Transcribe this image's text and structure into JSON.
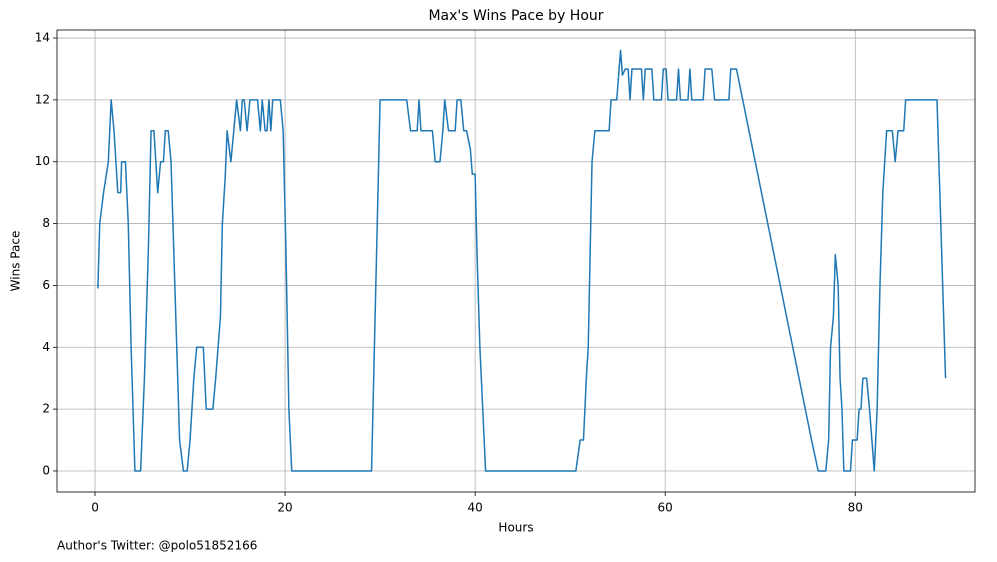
{
  "chart_data": {
    "type": "line",
    "title": "Max's Wins Pace by Hour",
    "x_label": "Hours",
    "y_label": "Wins Pace",
    "footnote": "Author's Twitter: @polo51852166",
    "x": [
      0.3,
      0.5,
      0.9,
      1.4,
      1.7,
      2.0,
      2.4,
      2.7,
      2.8,
      3.2,
      3.5,
      3.8,
      4.0,
      4.2,
      4.8,
      5.2,
      5.6,
      5.9,
      6.2,
      6.4,
      6.6,
      6.9,
      7.2,
      7.4,
      7.7,
      8.0,
      8.3,
      8.6,
      8.9,
      9.3,
      9.7,
      10.0,
      10.4,
      10.7,
      11.4,
      11.7,
      12.4,
      12.7,
      13.2,
      13.4,
      13.7,
      13.9,
      14.3,
      14.6,
      14.9,
      15.3,
      15.5,
      15.7,
      16.0,
      16.3,
      17.1,
      17.4,
      17.6,
      17.9,
      18.1,
      18.3,
      18.5,
      18.7,
      19.5,
      19.8,
      20.1,
      20.4,
      20.7,
      29.1,
      29.4,
      29.7,
      30.0,
      32.8,
      33.2,
      33.9,
      34.1,
      34.3,
      35.5,
      35.8,
      36.3,
      36.6,
      36.8,
      37.2,
      37.9,
      38.1,
      38.5,
      38.8,
      39.1,
      39.5,
      39.7,
      40.0,
      40.2,
      40.5,
      40.8,
      41.1,
      50.6,
      51.05,
      51.4,
      51.7,
      51.9,
      52.3,
      52.6,
      54.1,
      54.3,
      54.9,
      55.3,
      55.5,
      55.8,
      56.1,
      56.3,
      56.5,
      57.5,
      57.7,
      57.9,
      58.6,
      58.8,
      59.6,
      59.8,
      60.1,
      60.3,
      61.2,
      61.4,
      61.6,
      62.4,
      62.6,
      62.8,
      64.0,
      64.2,
      64.9,
      65.2,
      66.7,
      66.9,
      67.5,
      75.4,
      76.1,
      76.9,
      77.2,
      77.4,
      77.7,
      77.9,
      78.2,
      78.4,
      78.6,
      78.8,
      79.5,
      79.7,
      80.2,
      80.4,
      80.6,
      80.8,
      81.2,
      81.5,
      82.0,
      82.3,
      82.6,
      82.9,
      83.3,
      83.9,
      84.2,
      84.5,
      85.1,
      85.3,
      88.6,
      88.9,
      89.5
    ],
    "series": [
      {
        "name": "Wins Pace",
        "color": "#1f77b4",
        "values": [
          5.9,
          8,
          9,
          10,
          12,
          11,
          9,
          9,
          10,
          10,
          8,
          4,
          2,
          0,
          0,
          3,
          7,
          11,
          11,
          10,
          9,
          10,
          10,
          11,
          11,
          10,
          7,
          4,
          1,
          0,
          0,
          1,
          3,
          4,
          4,
          2,
          2,
          3,
          5,
          8,
          9.5,
          11,
          10,
          11,
          12,
          11,
          12,
          12,
          11,
          12,
          12,
          11,
          12,
          11,
          11,
          12,
          11,
          12,
          12,
          11,
          7,
          2,
          0,
          0,
          4,
          8,
          12,
          12,
          11,
          11,
          12,
          11,
          11,
          10,
          10,
          11,
          12,
          11,
          11,
          12,
          12,
          11,
          11,
          10.4,
          9.6,
          9.6,
          7,
          4,
          2,
          0,
          0,
          1,
          1,
          3,
          4,
          10,
          11,
          11,
          12,
          12,
          13.6,
          12.8,
          13,
          13,
          12,
          13,
          13,
          12,
          13,
          13,
          12,
          12,
          13,
          13,
          12,
          12,
          13,
          12,
          12,
          13,
          12,
          12,
          13,
          13,
          12,
          12,
          13,
          13,
          1,
          0,
          0,
          1,
          4,
          5,
          7,
          6,
          3,
          2,
          0,
          0,
          1,
          1,
          2,
          2,
          3,
          3,
          2,
          0,
          2,
          6,
          9,
          11,
          11,
          10,
          11,
          11,
          12,
          12,
          9,
          3
        ]
      }
    ],
    "xlim": [
      -4,
      92.6
    ],
    "ylim": [
      -0.68,
      14.26
    ],
    "xticks": [
      0,
      20,
      40,
      60,
      80
    ],
    "yticks": [
      0,
      2,
      4,
      6,
      8,
      10,
      12,
      14
    ],
    "grid": true
  }
}
